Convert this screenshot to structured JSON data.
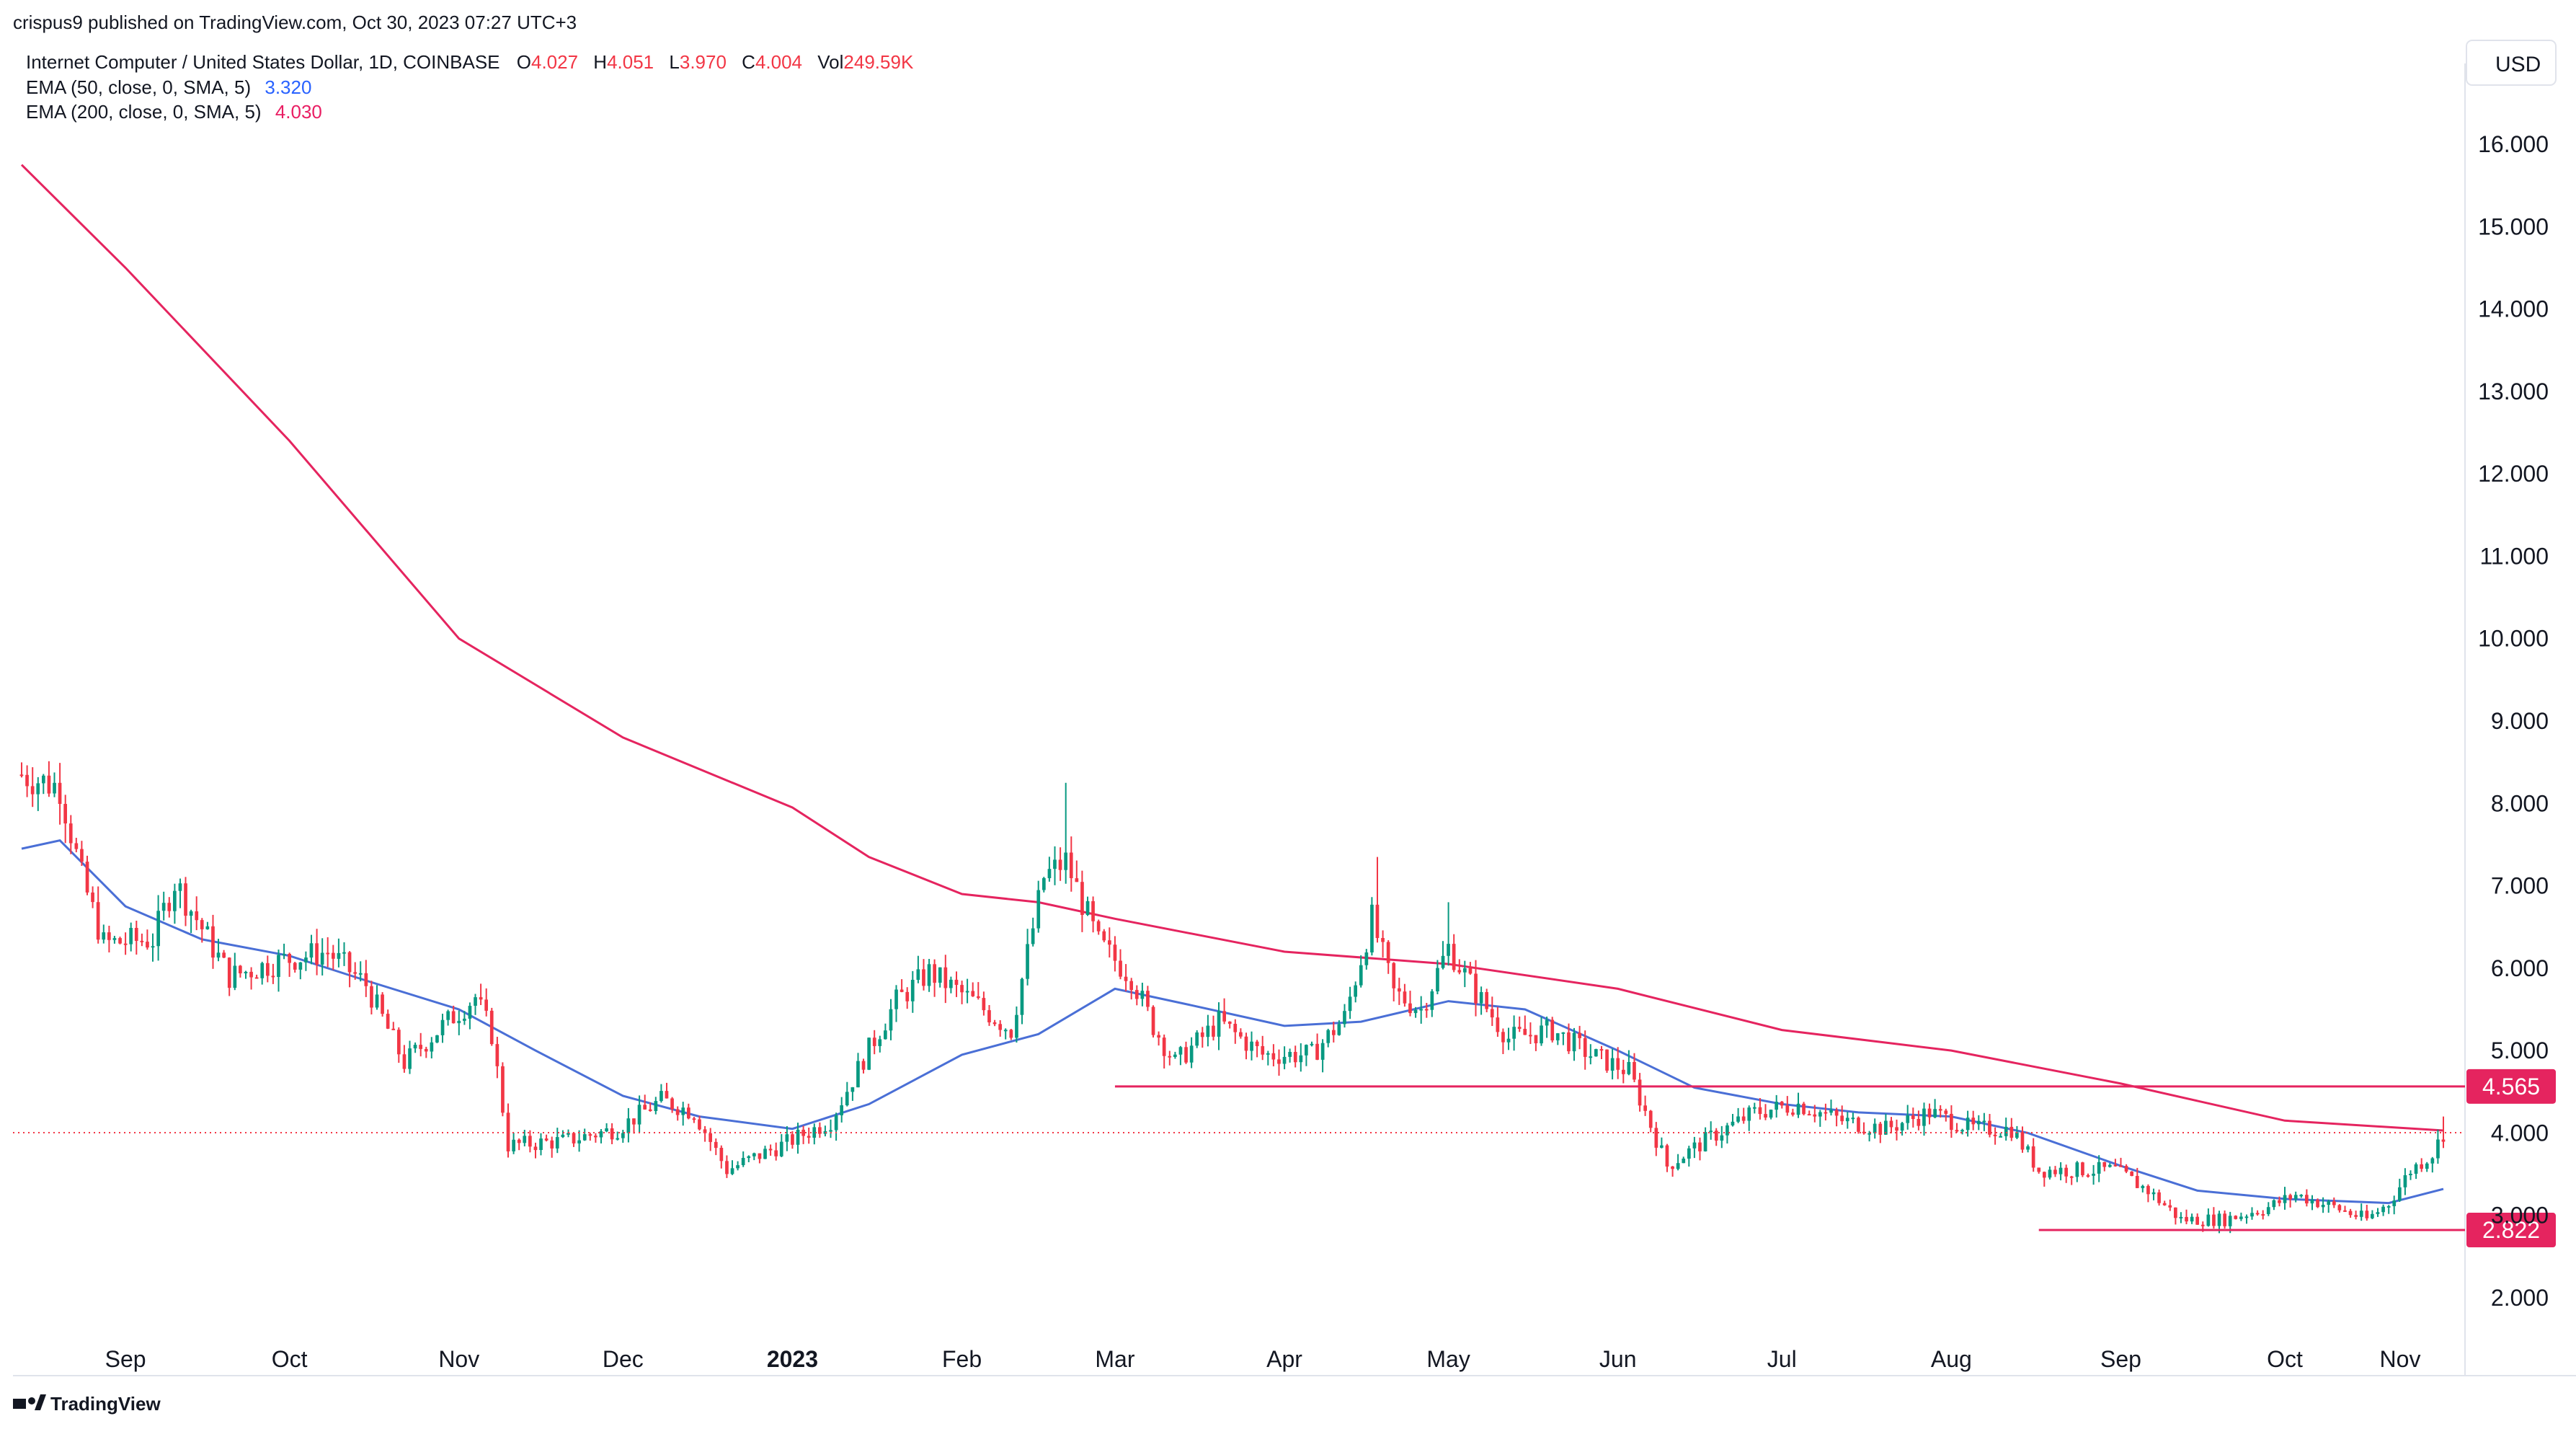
{
  "publisher_line": "crispus9 published on TradingView.com, Oct 30, 2023 07:27 UTC+3",
  "legend": {
    "symbol": "Internet Computer / United States Dollar, 1D, COINBASE",
    "ohlcv": [
      {
        "key": "O",
        "value": "4.027"
      },
      {
        "key": "H",
        "value": "4.051"
      },
      {
        "key": "L",
        "value": "3.970"
      },
      {
        "key": "C",
        "value": "4.004"
      },
      {
        "key": "Vol",
        "value": "249.59K"
      }
    ],
    "indicators": [
      {
        "label": "EMA (50, close, 0, SMA, 5)",
        "value": "3.320",
        "color": "#2962ff"
      },
      {
        "label": "EMA (200, close, 0, SMA, 5)",
        "value": "4.030",
        "color": "#e91e63"
      }
    ]
  },
  "currency": "USD",
  "branding": "TradingView",
  "colors": {
    "up": "#089981",
    "down": "#f23645",
    "ema50": "#4a6fd6",
    "ema200": "#e5245f",
    "level": "#e5245f",
    "current_price_line": "#f23645",
    "axis_text": "#131722"
  },
  "chart_data": {
    "type": "candlestick",
    "x_ticks": [
      "Sep",
      "Oct",
      "Nov",
      "Dec",
      "2023",
      "Feb",
      "Mar",
      "Apr",
      "May",
      "Jun",
      "Jul",
      "Aug",
      "Sep",
      "Oct",
      "Nov"
    ],
    "y_ticks": [
      "16.000",
      "15.000",
      "14.000",
      "13.000",
      "12.000",
      "11.000",
      "10.000",
      "9.000",
      "8.000",
      "7.000",
      "6.000",
      "5.000",
      "4.000",
      "3.000",
      "2.000"
    ],
    "y_range": [
      1.0,
      17.0
    ],
    "date_range": [
      "2022-08-13",
      "2023-10-30"
    ],
    "price_path": [
      [
        "2022-08-13",
        8.35
      ],
      [
        "2022-08-20",
        8.2
      ],
      [
        "2022-08-24",
        7.1
      ],
      [
        "2022-08-28",
        6.3
      ],
      [
        "2022-09-06",
        6.35
      ],
      [
        "2022-09-10",
        7.05
      ],
      [
        "2022-09-14",
        6.6
      ],
      [
        "2022-09-20",
        5.9
      ],
      [
        "2022-09-30",
        6.1
      ],
      [
        "2022-10-08",
        6.2
      ],
      [
        "2022-10-15",
        5.8
      ],
      [
        "2022-10-22",
        4.85
      ],
      [
        "2022-10-29",
        5.3
      ],
      [
        "2022-11-04",
        5.65
      ],
      [
        "2022-11-07",
        5.2
      ],
      [
        "2022-11-10",
        3.85
      ],
      [
        "2022-11-20",
        3.9
      ],
      [
        "2022-11-30",
        4.05
      ],
      [
        "2022-12-08",
        4.4
      ],
      [
        "2022-12-14",
        4.25
      ],
      [
        "2022-12-20",
        3.55
      ],
      [
        "2022-12-30",
        3.85
      ],
      [
        "2023-01-08",
        4.15
      ],
      [
        "2023-01-14",
        4.9
      ],
      [
        "2023-01-20",
        5.6
      ],
      [
        "2023-01-26",
        5.95
      ],
      [
        "2023-02-03",
        5.6
      ],
      [
        "2023-02-10",
        5.25
      ],
      [
        "2023-02-16",
        7.1
      ],
      [
        "2023-02-20",
        7.3
      ],
      [
        "2023-02-26",
        6.3
      ],
      [
        "2023-03-04",
        5.9
      ],
      [
        "2023-03-08",
        5.3
      ],
      [
        "2023-03-12",
        4.85
      ],
      [
        "2023-03-20",
        5.35
      ],
      [
        "2023-03-28",
        4.95
      ],
      [
        "2023-04-06",
        4.95
      ],
      [
        "2023-04-12",
        5.4
      ],
      [
        "2023-04-17",
        6.6
      ],
      [
        "2023-04-21",
        5.7
      ],
      [
        "2023-04-26",
        5.5
      ],
      [
        "2023-05-01",
        6.25
      ],
      [
        "2023-05-06",
        5.7
      ],
      [
        "2023-05-12",
        5.15
      ],
      [
        "2023-05-20",
        5.25
      ],
      [
        "2023-05-27",
        4.95
      ],
      [
        "2023-06-03",
        4.75
      ],
      [
        "2023-06-10",
        3.6
      ],
      [
        "2023-06-18",
        3.95
      ],
      [
        "2023-06-26",
        4.25
      ],
      [
        "2023-07-04",
        4.35
      ],
      [
        "2023-07-12",
        4.15
      ],
      [
        "2023-07-20",
        4.05
      ],
      [
        "2023-07-28",
        4.25
      ],
      [
        "2023-08-05",
        4.05
      ],
      [
        "2023-08-12",
        4.05
      ],
      [
        "2023-08-17",
        3.55
      ],
      [
        "2023-08-24",
        3.55
      ],
      [
        "2023-08-31",
        3.55
      ],
      [
        "2023-09-06",
        3.3
      ],
      [
        "2023-09-12",
        2.95
      ],
      [
        "2023-09-20",
        2.95
      ],
      [
        "2023-09-28",
        3.1
      ],
      [
        "2023-10-03",
        3.25
      ],
      [
        "2023-10-10",
        3.1
      ],
      [
        "2023-10-16",
        2.95
      ],
      [
        "2023-10-20",
        3.15
      ],
      [
        "2023-10-24",
        3.55
      ],
      [
        "2023-10-28",
        3.75
      ],
      [
        "2023-10-30",
        4.0
      ]
    ],
    "spikes": [
      {
        "date": "2023-02-20",
        "high": 8.25
      },
      {
        "date": "2023-04-18",
        "high": 7.35
      },
      {
        "date": "2023-05-01",
        "high": 6.8
      },
      {
        "date": "2023-10-30",
        "high": 4.2
      }
    ],
    "series": [
      {
        "name": "EMA (50, close, 0, SMA, 5)",
        "points": [
          [
            "2022-08-13",
            7.45
          ],
          [
            "2022-08-20",
            7.55
          ],
          [
            "2022-09-01",
            6.75
          ],
          [
            "2022-09-15",
            6.35
          ],
          [
            "2022-10-01",
            6.15
          ],
          [
            "2022-10-15",
            5.85
          ],
          [
            "2022-11-01",
            5.5
          ],
          [
            "2022-11-15",
            5.0
          ],
          [
            "2022-12-01",
            4.45
          ],
          [
            "2022-12-15",
            4.2
          ],
          [
            "2023-01-01",
            4.05
          ],
          [
            "2023-01-15",
            4.35
          ],
          [
            "2023-02-01",
            4.95
          ],
          [
            "2023-02-15",
            5.2
          ],
          [
            "2023-03-01",
            5.75
          ],
          [
            "2023-03-15",
            5.55
          ],
          [
            "2023-04-01",
            5.3
          ],
          [
            "2023-04-15",
            5.35
          ],
          [
            "2023-05-01",
            5.6
          ],
          [
            "2023-05-15",
            5.5
          ],
          [
            "2023-06-01",
            5.0
          ],
          [
            "2023-06-15",
            4.55
          ],
          [
            "2023-07-01",
            4.35
          ],
          [
            "2023-07-15",
            4.25
          ],
          [
            "2023-08-01",
            4.2
          ],
          [
            "2023-08-15",
            4.0
          ],
          [
            "2023-09-01",
            3.6
          ],
          [
            "2023-09-15",
            3.3
          ],
          [
            "2023-10-01",
            3.2
          ],
          [
            "2023-10-20",
            3.15
          ],
          [
            "2023-10-30",
            3.32
          ]
        ]
      },
      {
        "name": "EMA (200, close, 0, SMA, 5)",
        "points": [
          [
            "2022-08-13",
            15.75
          ],
          [
            "2022-09-01",
            14.5
          ],
          [
            "2022-10-01",
            12.4
          ],
          [
            "2022-11-01",
            10.0
          ],
          [
            "2022-12-01",
            8.8
          ],
          [
            "2023-01-01",
            7.95
          ],
          [
            "2023-01-15",
            7.35
          ],
          [
            "2023-02-01",
            6.9
          ],
          [
            "2023-02-15",
            6.8
          ],
          [
            "2023-03-01",
            6.6
          ],
          [
            "2023-04-01",
            6.2
          ],
          [
            "2023-05-01",
            6.05
          ],
          [
            "2023-06-01",
            5.75
          ],
          [
            "2023-07-01",
            5.25
          ],
          [
            "2023-08-01",
            5.0
          ],
          [
            "2023-09-01",
            4.6
          ],
          [
            "2023-10-01",
            4.15
          ],
          [
            "2023-10-30",
            4.03
          ]
        ]
      }
    ],
    "levels": [
      {
        "value": 4.565,
        "label": "4.565",
        "from": "2023-03-01",
        "to": "2023-10-30"
      },
      {
        "value": 2.822,
        "label": "2.822",
        "from": "2023-08-17",
        "to": "2023-10-30"
      }
    ],
    "current_price": 4.004
  }
}
